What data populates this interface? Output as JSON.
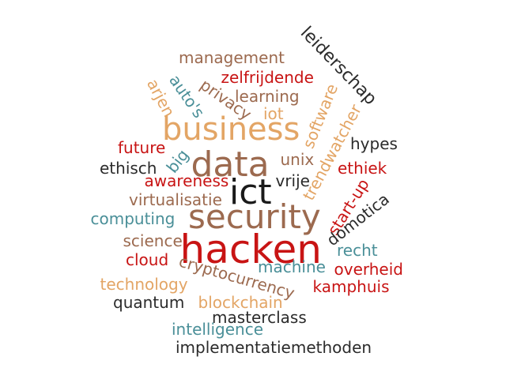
{
  "colors": {
    "brown": "#9c6a4f",
    "tan": "#e3a565",
    "red": "#c81414",
    "teal": "#4a8f98",
    "dark": "#2b2b2b",
    "black": "#1a1a1a"
  },
  "words": [
    {
      "text": "hacken",
      "color": "red"
    },
    {
      "text": "security",
      "color": "brown"
    },
    {
      "text": "ict",
      "color": "black"
    },
    {
      "text": "data",
      "color": "brown"
    },
    {
      "text": "business",
      "color": "tan"
    },
    {
      "text": "leiderschap",
      "color": "dark"
    },
    {
      "text": "management",
      "color": "brown"
    },
    {
      "text": "zelfrijdende",
      "color": "red"
    },
    {
      "text": "privacy",
      "color": "brown"
    },
    {
      "text": "learning",
      "color": "brown"
    },
    {
      "text": "auto's",
      "color": "teal"
    },
    {
      "text": "arjen",
      "color": "tan"
    },
    {
      "text": "software",
      "color": "tan"
    },
    {
      "text": "iot",
      "color": "tan"
    },
    {
      "text": "trendwatcher",
      "color": "tan"
    },
    {
      "text": "hypes",
      "color": "dark"
    },
    {
      "text": "future",
      "color": "red"
    },
    {
      "text": "big",
      "color": "teal"
    },
    {
      "text": "unix",
      "color": "brown"
    },
    {
      "text": "ethisch",
      "color": "dark"
    },
    {
      "text": "ethiek",
      "color": "red"
    },
    {
      "text": "awareness",
      "color": "red"
    },
    {
      "text": "vrije",
      "color": "dark"
    },
    {
      "text": "start-up",
      "color": "red"
    },
    {
      "text": "virtualisatie",
      "color": "brown"
    },
    {
      "text": "domotica",
      "color": "dark"
    },
    {
      "text": "computing",
      "color": "teal"
    },
    {
      "text": "science",
      "color": "brown"
    },
    {
      "text": "recht",
      "color": "teal"
    },
    {
      "text": "cloud",
      "color": "red"
    },
    {
      "text": "machine",
      "color": "teal"
    },
    {
      "text": "overheid",
      "color": "red"
    },
    {
      "text": "cryptocurrency",
      "color": "brown"
    },
    {
      "text": "technology",
      "color": "tan"
    },
    {
      "text": "kamphuis",
      "color": "red"
    },
    {
      "text": "quantum",
      "color": "dark"
    },
    {
      "text": "blockchain",
      "color": "tan"
    },
    {
      "text": "masterclass",
      "color": "dark"
    },
    {
      "text": "intelligence",
      "color": "teal"
    },
    {
      "text": "implementatiemethoden",
      "color": "dark"
    }
  ]
}
